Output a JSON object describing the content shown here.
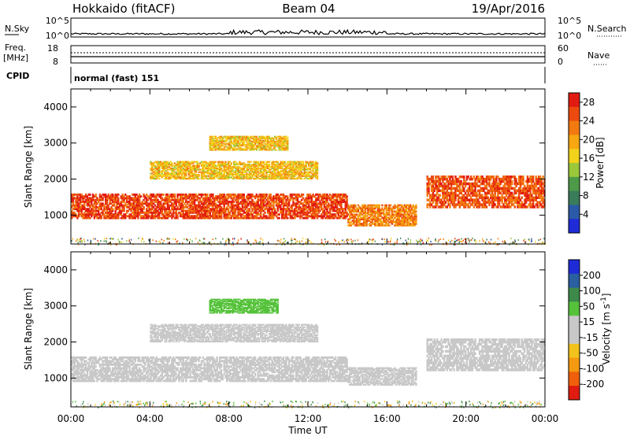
{
  "header": {
    "station": "Hokkaido (fitACF)",
    "beam": "Beam 04",
    "date": "19/Apr/2016"
  },
  "top_panels": {
    "nsky_label": "N.Sky",
    "nsky_ticks": [
      "10^5",
      "10^0"
    ],
    "nsearch_label": "N.Search",
    "nsearch_ticks": [
      "10^5",
      "10^0"
    ],
    "freq_label": "Freq.",
    "freq_unit": "[MHz]",
    "freq_ticks": [
      "18",
      "8"
    ],
    "nave_label": "Nave",
    "nave_ticks": [
      "60",
      "0"
    ],
    "cpid_label": "CPID",
    "cpid_value": "normal (fast) 151"
  },
  "chart_data": [
    {
      "type": "heatmap",
      "title": "",
      "xlabel": "",
      "ylabel": "Slant Range [km]",
      "yticks": [
        "1000",
        "2000",
        "3000",
        "4000"
      ],
      "ylim": [
        200,
        4500
      ],
      "xlim": [
        "00:00",
        "24:00"
      ],
      "colorbar": {
        "label": "Power [dB]",
        "ticks": [
          "4",
          "8",
          "12",
          "16",
          "20",
          "24",
          "28"
        ],
        "range": [
          0,
          30
        ],
        "colors": [
          "#1f2bd6",
          "#2b5aa8",
          "#3a7c5a",
          "#4d9a49",
          "#9ac83a",
          "#f2d21a",
          "#f6a712",
          "#f27a10",
          "#ec4a0e",
          "#e11b12"
        ]
      },
      "regions": [
        {
          "t0": 0.0,
          "t1": 14.0,
          "r0": 900,
          "r1": 1600,
          "level": 26,
          "note": "main band, high power"
        },
        {
          "t0": 4.0,
          "t1": 12.5,
          "r0": 2000,
          "r1": 2500,
          "level": 18
        },
        {
          "t0": 7.0,
          "t1": 11.0,
          "r0": 2800,
          "r1": 3200,
          "level": 18
        },
        {
          "t0": 14.0,
          "t1": 17.5,
          "r0": 700,
          "r1": 1300,
          "level": 22
        },
        {
          "t0": 18.0,
          "t1": 24.0,
          "r0": 1200,
          "r1": 2100,
          "level": 25
        }
      ]
    },
    {
      "type": "heatmap",
      "title": "",
      "xlabel": "Time UT",
      "ylabel": "Slant Range [km]",
      "xticks": [
        "00:00",
        "04:00",
        "08:00",
        "12:00",
        "16:00",
        "20:00",
        "00:00"
      ],
      "yticks": [
        "1000",
        "2000",
        "3000",
        "4000"
      ],
      "ylim": [
        200,
        4500
      ],
      "colorbar": {
        "label": "Velocity [m s^-1]",
        "ticks": [
          "200",
          "100",
          "50",
          "15",
          "-15",
          "-50",
          "-100",
          "-200"
        ],
        "range": [
          -250,
          250
        ],
        "colors": [
          "#1f2bd6",
          "#2a5fa0",
          "#3d8a4a",
          "#55c23a",
          "#c8c8c8",
          "#c8c8c8",
          "#f2c31a",
          "#f59a10",
          "#f0600c",
          "#e01b10"
        ]
      },
      "regions": [
        {
          "t0": 0.0,
          "t1": 14.0,
          "r0": 900,
          "r1": 1600,
          "value": 0,
          "note": "ground scatter, grey"
        },
        {
          "t0": 4.0,
          "t1": 12.5,
          "r0": 2000,
          "r1": 2500,
          "value": 0
        },
        {
          "t0": 7.0,
          "t1": 10.5,
          "r0": 2800,
          "r1": 3200,
          "value": -60
        },
        {
          "t0": 14.0,
          "t1": 17.5,
          "r0": 800,
          "r1": 1300,
          "value": -40
        },
        {
          "t0": 18.0,
          "t1": 24.0,
          "r0": 1200,
          "r1": 2100,
          "value": 0
        }
      ]
    }
  ]
}
